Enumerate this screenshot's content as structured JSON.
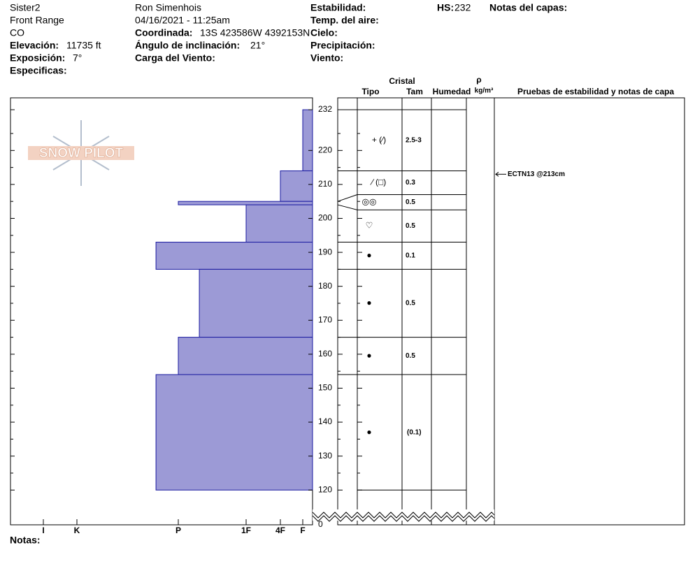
{
  "header": {
    "site": "Sister2",
    "range": "Front Range",
    "state": "CO",
    "elevation": {
      "label": "Elevación:",
      "value": "11735 ft"
    },
    "aspect": {
      "label": "Exposición:",
      "value": "7°"
    },
    "specifics": {
      "label": "Especificas:"
    },
    "observer": "Ron Simenhois",
    "datetime": "04/16/2021 - 11:25am",
    "coordinates": {
      "label": "Coordinada:",
      "value": "13S 423586W 4392153N"
    },
    "slope": {
      "label": "Ángulo de inclinación:",
      "value": "21°"
    },
    "wind_loading": {
      "label": "Carga del Viento:"
    },
    "stability": {
      "label": "Estabilidad:"
    },
    "air_temp": {
      "label": "Temp. del aire:"
    },
    "sky": {
      "label": "Cielo:"
    },
    "precip": {
      "label": "Precipitación:"
    },
    "wind": {
      "label": "Viento:"
    },
    "hs": {
      "label": "HS:",
      "value": 232
    },
    "layer_notes": {
      "label": "Notas del capas:"
    },
    "notes": {
      "label": "Notas:"
    }
  },
  "logo": {
    "text": "SNOW PILOT"
  },
  "columns": {
    "crystal": "Cristal",
    "type": "Tipo",
    "size": "Tam",
    "moisture": "Humedad",
    "rho": "ρ",
    "density_unit": "kg/m³",
    "tests": "Pruebas de estabilidad y notas de capa"
  },
  "chart_data": {
    "type": "snow-profile",
    "ylim": [
      111,
      235.5
    ],
    "yticks": [
      120,
      130,
      140,
      150,
      160,
      170,
      180,
      190,
      200,
      210,
      220,
      232
    ],
    "minor_yticks": [
      125,
      135,
      145,
      155,
      165,
      175,
      185,
      195,
      205,
      215,
      225
    ],
    "break_tick": 0,
    "xlim": [
      0.56,
      6.98
    ],
    "xticks": [
      {
        "value": 1,
        "label": "F"
      },
      {
        "value": 2,
        "label": "4F"
      },
      {
        "value": 3,
        "label": "1F"
      },
      {
        "value": 4,
        "label": "P"
      },
      {
        "value": 5,
        "label": "K"
      },
      {
        "value": 6,
        "label": "I"
      }
    ],
    "color": "#9c9ad6",
    "edge_color": "#1a1aa0",
    "layers": [
      {
        "top": 232,
        "bottom": 214,
        "hardness": 1
      },
      {
        "top": 214,
        "bottom": 205,
        "hardness": 2
      },
      {
        "top": 205,
        "bottom": 204,
        "hardness": 4
      },
      {
        "top": 204,
        "bottom": 193,
        "hardness": 3
      },
      {
        "top": 193,
        "bottom": 185,
        "hardness": 4.22
      },
      {
        "top": 185,
        "bottom": 165,
        "hardness": 3.69
      },
      {
        "top": 165,
        "bottom": 154,
        "hardness": 4
      },
      {
        "top": 154,
        "bottom": 120,
        "hardness": 4.22
      }
    ],
    "crystals": [
      {
        "top": 232,
        "bottom": 214,
        "type": "+ (∕)",
        "size": "2.5-3"
      },
      {
        "top": 214,
        "bottom": 207,
        "type": "∕ (□)",
        "size": "0.3"
      },
      {
        "top": 207,
        "bottom": 202.5,
        "type": "◎◎",
        "size": "0.5"
      },
      {
        "top": 202.5,
        "bottom": 193,
        "type": "♡",
        "size": "0.5"
      },
      {
        "top": 193,
        "bottom": 185,
        "type": "●",
        "size": "0.1"
      },
      {
        "top": 185,
        "bottom": 165,
        "type": "●",
        "size": "0.5"
      },
      {
        "top": 165,
        "bottom": 154,
        "type": "●",
        "size": "0.5"
      },
      {
        "top": 154,
        "bottom": 120,
        "type": "●",
        "size": "(0.1)"
      }
    ],
    "tests": [
      {
        "label": "ECTN13 @213cm",
        "depth": 213
      }
    ]
  }
}
